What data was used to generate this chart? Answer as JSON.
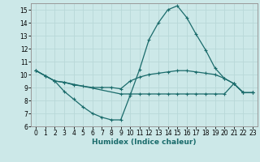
{
  "xlabel": "Humidex (Indice chaleur)",
  "xlim": [
    -0.5,
    23.5
  ],
  "ylim": [
    6,
    15.5
  ],
  "yticks": [
    6,
    7,
    8,
    9,
    10,
    11,
    12,
    13,
    14,
    15
  ],
  "xticks": [
    0,
    1,
    2,
    3,
    4,
    5,
    6,
    7,
    8,
    9,
    10,
    11,
    12,
    13,
    14,
    15,
    16,
    17,
    18,
    19,
    20,
    21,
    22,
    23
  ],
  "bg_color": "#cce8e8",
  "line_color": "#1a6b6b",
  "grid_color": "#b8d8d8",
  "line1_x": [
    0,
    1,
    2,
    3,
    4,
    5,
    6,
    7,
    8,
    9,
    10,
    11,
    12,
    13,
    14,
    15,
    16,
    17,
    18,
    19,
    20,
    21,
    22,
    23
  ],
  "line1_y": [
    10.3,
    9.9,
    9.5,
    8.7,
    8.1,
    7.5,
    7.0,
    6.7,
    6.5,
    6.5,
    8.4,
    10.4,
    12.7,
    14.0,
    15.0,
    15.3,
    14.4,
    13.1,
    11.9,
    10.5,
    9.7,
    9.3,
    8.6,
    8.6
  ],
  "line2_x": [
    0,
    1,
    2,
    3,
    4,
    5,
    6,
    7,
    8,
    9,
    10,
    11,
    12,
    13,
    14,
    15,
    16,
    17,
    18,
    19,
    20,
    21,
    22,
    23
  ],
  "line2_y": [
    10.3,
    9.9,
    9.5,
    9.4,
    9.2,
    9.1,
    9.0,
    9.0,
    9.0,
    8.9,
    9.5,
    9.8,
    10.0,
    10.1,
    10.2,
    10.3,
    10.3,
    10.2,
    10.1,
    10.0,
    9.7,
    9.3,
    8.6,
    8.6
  ],
  "line3_x": [
    0,
    2,
    3,
    9,
    10,
    11,
    12,
    13,
    14,
    15,
    16,
    17,
    18,
    19,
    20,
    21,
    22,
    23
  ],
  "line3_y": [
    10.3,
    9.5,
    9.4,
    8.5,
    8.5,
    8.5,
    8.5,
    8.5,
    8.5,
    8.5,
    8.5,
    8.5,
    8.5,
    8.5,
    8.5,
    9.3,
    8.6,
    8.6
  ],
  "markersize": 3.5,
  "linewidth": 0.9
}
